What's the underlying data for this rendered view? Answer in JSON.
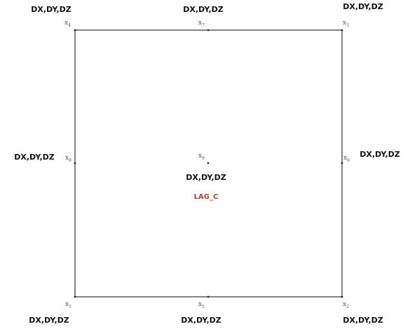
{
  "colors": {
    "edge": "#333333",
    "dof": "#111111",
    "node": "#555555",
    "element_label": "#c0392b"
  },
  "element": {
    "label": "LAG_C"
  },
  "nodes": [
    {
      "id": "1",
      "base": "x",
      "sub": "1",
      "dof": "DX,DY,DZ"
    },
    {
      "id": "2",
      "base": "x",
      "sub": "2",
      "dof": "DX,DY,DZ"
    },
    {
      "id": "3",
      "base": "x",
      "sub": "3",
      "dof": "DX,DY,DZ"
    },
    {
      "id": "4",
      "base": "x",
      "sub": "4",
      "dof": "DX,DY,DZ"
    },
    {
      "id": "5",
      "base": "x",
      "sub": "5",
      "dof": "DX,DY,DZ"
    },
    {
      "id": "6",
      "base": "x",
      "sub": "6",
      "dof": "DX,DY,DZ"
    },
    {
      "id": "7",
      "base": "x",
      "sub": "7",
      "dof": "DX,DY,DZ"
    },
    {
      "id": "8",
      "base": "x",
      "sub": "8",
      "dof": "DX,DY,DZ"
    },
    {
      "id": "9",
      "base": "x",
      "sub": "9",
      "dof": "DX,DY,DZ"
    }
  ]
}
